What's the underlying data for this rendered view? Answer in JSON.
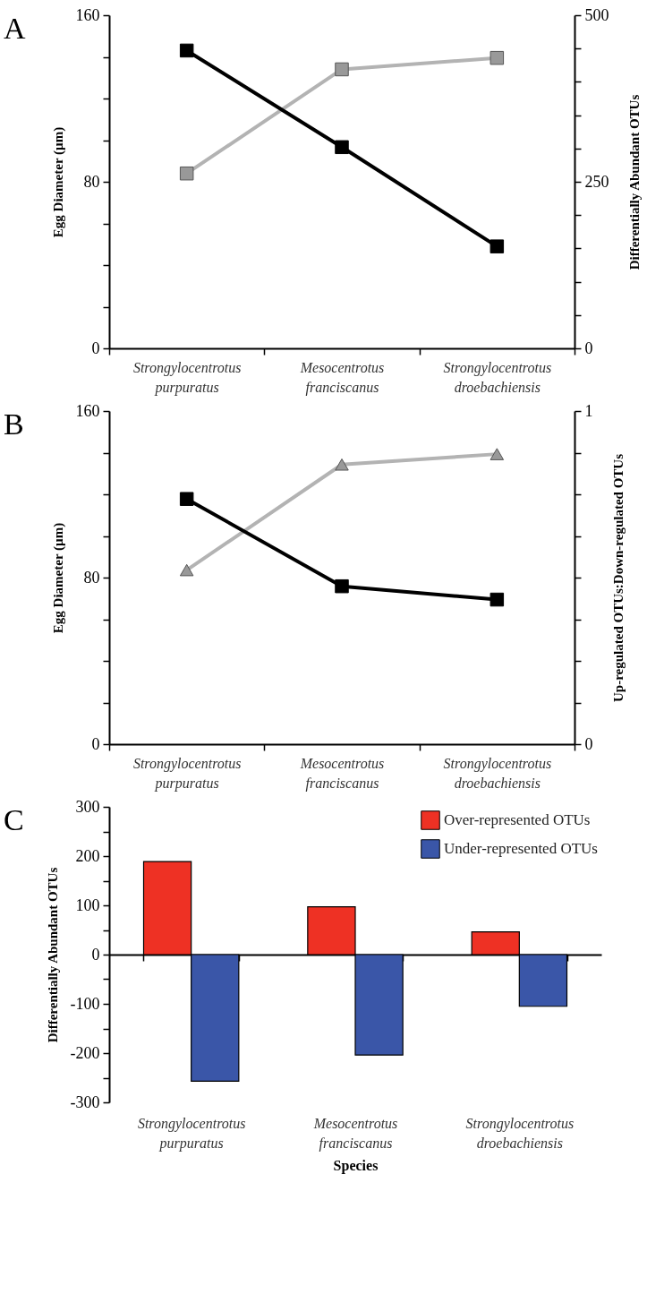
{
  "chart_data": [
    {
      "type": "line",
      "title": "A",
      "categories": [
        "Strongylocentrotus purpuratus",
        "Mesocentrotus franciscanus",
        "Strongylocentrotus droebachiensis"
      ],
      "ylabel": "Egg Diameter (µm)",
      "y2label": "Differentially Abundant OTUs",
      "ylim": [
        0,
        160
      ],
      "yticks": [
        0,
        {
          "value": 20,
          "label": null
        },
        {
          "value": 40,
          "label": null
        },
        {
          "value": 60,
          "label": null
        },
        80,
        {
          "value": 100,
          "label": null
        },
        {
          "value": 120,
          "label": null
        },
        {
          "value": 140,
          "label": null
        },
        160
      ],
      "y2lim": [
        0,
        500
      ],
      "y2ticks": [
        0,
        {
          "value": 50,
          "label": null
        },
        {
          "value": 100,
          "label": null
        },
        {
          "value": 150,
          "label": null
        },
        {
          "value": 200,
          "label": null
        },
        250,
        {
          "value": 300,
          "label": null
        },
        {
          "value": 350,
          "label": null
        },
        {
          "value": 400,
          "label": null
        },
        {
          "value": 450,
          "label": null
        },
        500
      ],
      "marker": "square",
      "series": [
        {
          "color": "#b3b3b3",
          "values": [
            84,
            134,
            139.5
          ]
        },
        {
          "color": "#000000",
          "axis": "y2",
          "values": [
            447,
            302,
            153
          ]
        }
      ]
    },
    {
      "type": "line",
      "title": "B",
      "categories": [
        "Strongylocentrotus purpuratus",
        "Mesocentrotus franciscanus",
        "Strongylocentrotus droebachiensis"
      ],
      "ylabel": "Egg Diameter (µm)",
      "y2label": "Up-regulated OTUs:Down-regulated OTUs",
      "ylim": [
        0,
        160
      ],
      "yticks": [
        0,
        {
          "value": 20,
          "label": null
        },
        {
          "value": 40,
          "label": null
        },
        {
          "value": 60,
          "label": null
        },
        80,
        {
          "value": 100,
          "label": null
        },
        {
          "value": 120,
          "label": null
        },
        {
          "value": 140,
          "label": null
        },
        160
      ],
      "y2lim": [
        0,
        1
      ],
      "y2ticks": [
        0,
        {
          "value": 0.125,
          "label": null
        },
        {
          "value": 0.25,
          "label": null
        },
        {
          "value": 0.375,
          "label": null
        },
        {
          "value": 0.5,
          "label": null
        },
        {
          "value": 0.625,
          "label": null
        },
        {
          "value": 0.75,
          "label": null
        },
        {
          "value": 0.875,
          "label": null
        },
        1
      ],
      "series": [
        {
          "color": "#b3b3b3",
          "marker": "triangle",
          "values": [
            83.6,
            134.3,
            139.3
          ]
        },
        {
          "color": "#000000",
          "marker": "square",
          "axis": "y2",
          "values": [
            0.736,
            0.474,
            0.434
          ]
        }
      ]
    },
    {
      "type": "bar",
      "title": "C",
      "categories": [
        "Strongylocentrotus purpuratus",
        "Mesocentrotus franciscanus",
        "Strongylocentrotus droebachiensis"
      ],
      "xlabel": "Species",
      "ylabel": "Differentially Abundant OTUs",
      "ylim": [
        -300,
        300
      ],
      "yticks": [
        -300,
        {
          "value": -250,
          "label": null
        },
        -200,
        {
          "value": -150,
          "label": null
        },
        -100,
        {
          "value": -50,
          "label": null
        },
        0,
        {
          "value": 50,
          "label": null
        },
        100,
        {
          "value": 150,
          "label": null
        },
        200,
        {
          "value": 250,
          "label": null
        },
        300
      ],
      "legend": "top right",
      "series": [
        {
          "name": "Over-represented OTUs",
          "color": "#ee3124",
          "values": [
            189,
            97,
            46
          ]
        },
        {
          "name": "Under-represented OTUs",
          "color": "#3a56a8",
          "values": [
            -257,
            -204,
            -105
          ]
        }
      ]
    }
  ]
}
